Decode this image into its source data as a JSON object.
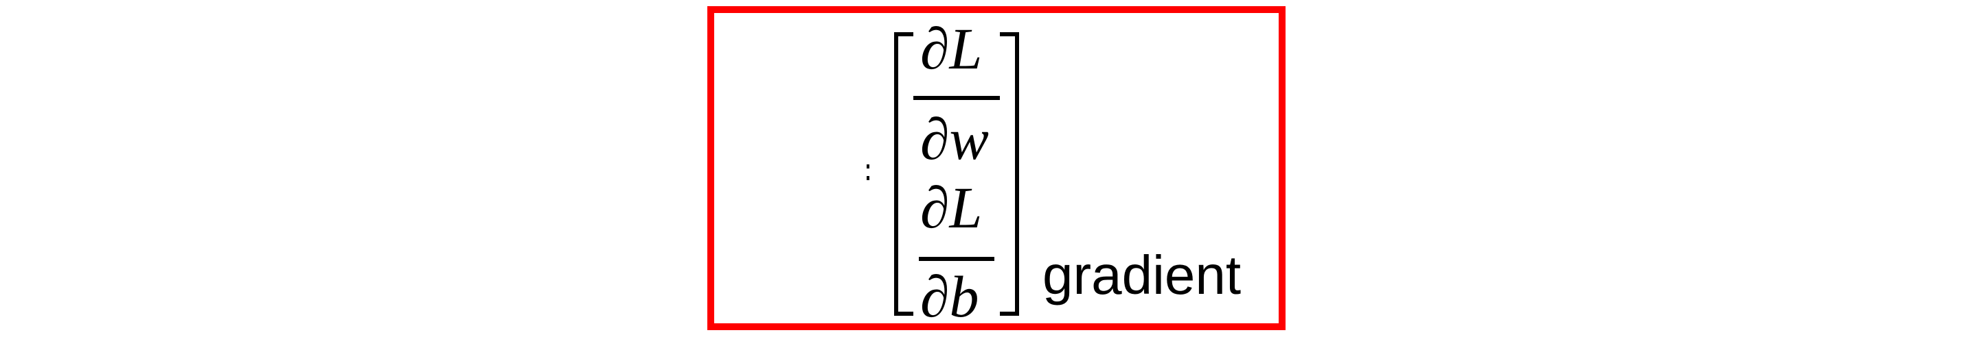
{
  "equation": {
    "row1": {
      "numerator": "∂L",
      "denominator": "∂w"
    },
    "row2": {
      "numerator": "∂L",
      "denominator": "∂b"
    },
    "label": "gradient"
  },
  "colors": {
    "frame": "#ff0000",
    "ink": "#000000"
  }
}
